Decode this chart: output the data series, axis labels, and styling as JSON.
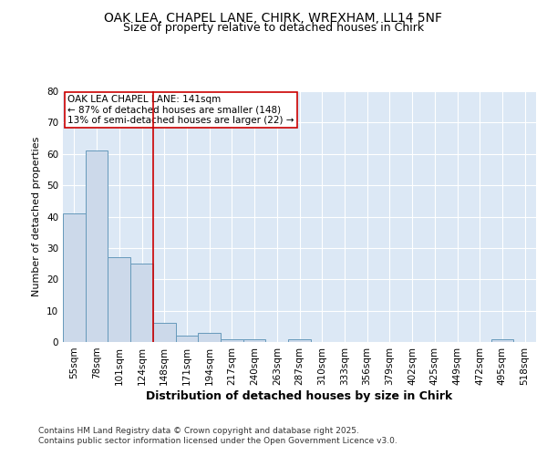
{
  "title_line1": "OAK LEA, CHAPEL LANE, CHIRK, WREXHAM, LL14 5NF",
  "title_line2": "Size of property relative to detached houses in Chirk",
  "xlabel": "Distribution of detached houses by size in Chirk",
  "ylabel": "Number of detached properties",
  "categories": [
    "55sqm",
    "78sqm",
    "101sqm",
    "124sqm",
    "148sqm",
    "171sqm",
    "194sqm",
    "217sqm",
    "240sqm",
    "263sqm",
    "287sqm",
    "310sqm",
    "333sqm",
    "356sqm",
    "379sqm",
    "402sqm",
    "425sqm",
    "449sqm",
    "472sqm",
    "495sqm",
    "518sqm"
  ],
  "values": [
    41,
    61,
    27,
    25,
    6,
    2,
    3,
    1,
    1,
    0,
    1,
    0,
    0,
    0,
    0,
    0,
    0,
    0,
    0,
    1,
    0
  ],
  "bar_color": "#ccd9ea",
  "bar_edge_color": "#6699bb",
  "ylim": [
    0,
    80
  ],
  "yticks": [
    0,
    10,
    20,
    30,
    40,
    50,
    60,
    70,
    80
  ],
  "vline_x": 3.5,
  "vline_color": "#cc0000",
  "annotation_text": "OAK LEA CHAPEL LANE: 141sqm\n← 87% of detached houses are smaller (148)\n13% of semi-detached houses are larger (22) →",
  "annotation_box_color": "#ffffff",
  "annotation_box_edge_color": "#cc0000",
  "background_color": "#ffffff",
  "plot_bg_color": "#dce8f5",
  "footer_text": "Contains HM Land Registry data © Crown copyright and database right 2025.\nContains public sector information licensed under the Open Government Licence v3.0.",
  "grid_color": "#ffffff",
  "title_fontsize": 10,
  "subtitle_fontsize": 9,
  "xlabel_fontsize": 9,
  "ylabel_fontsize": 8,
  "tick_fontsize": 7.5,
  "footer_fontsize": 6.5,
  "annot_fontsize": 7.5
}
